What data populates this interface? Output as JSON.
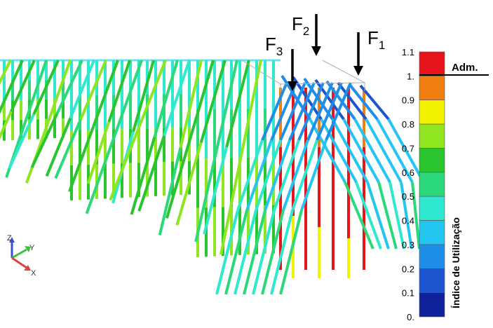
{
  "forces": [
    {
      "letter": "F",
      "index": "3"
    },
    {
      "letter": "F",
      "index": "2"
    },
    {
      "letter": "F",
      "index": "1"
    }
  ],
  "colorbar": {
    "title": "Índice de Utilização",
    "admissible_label": "Adm.",
    "admissible_value": 1.0,
    "ticks": [
      "1.1",
      "1.",
      "0.9",
      "0.8",
      "0.7",
      "0.6",
      "0.5",
      "0.4",
      "0.3",
      "0.2",
      "0.1",
      "0."
    ],
    "colors": [
      "#e8141c",
      "#f07f10",
      "#f2f200",
      "#8fe620",
      "#29c42e",
      "#2cd97a",
      "#2fe8d0",
      "#22c6f0",
      "#1f8ee8",
      "#1c55cf",
      "#10229a"
    ]
  },
  "axes": {
    "z": "Z",
    "y": "Y",
    "x": "X"
  }
}
